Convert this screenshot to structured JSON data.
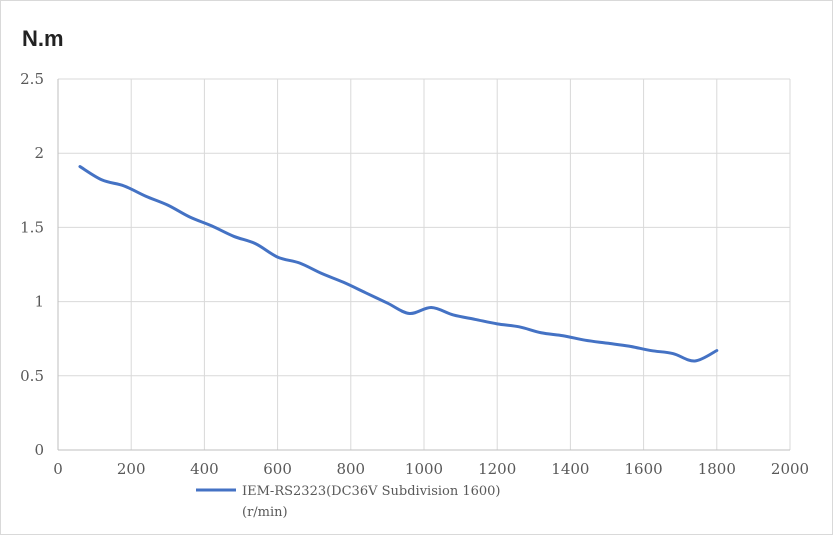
{
  "chart_data": {
    "type": "line",
    "y_unit_label": "N.m",
    "legend_line1": "IEM-RS2323(DC36V Subdivision 1600)",
    "legend_line2": "(r/min)",
    "legend_placement": "bottom",
    "xlim": [
      0,
      2000
    ],
    "ylim": [
      0,
      2.5
    ],
    "x_ticks": [
      0,
      200,
      400,
      600,
      800,
      1000,
      1200,
      1400,
      1600,
      1800,
      2000
    ],
    "y_ticks": [
      0,
      0.5,
      1,
      1.5,
      2,
      2.5
    ],
    "x_tick_labels": [
      "0",
      "200",
      "400",
      "600",
      "800",
      "1000",
      "1200",
      "1400",
      "1600",
      "1800",
      "2000"
    ],
    "y_tick_labels": [
      "0",
      "0.5",
      "1",
      "1.5",
      "2",
      "2.5"
    ],
    "grid": true,
    "series": [
      {
        "name": "IEM-RS2323(DC36V Subdivision 1600)",
        "color": "#4472c4",
        "x": [
          60,
          120,
          180,
          240,
          300,
          360,
          420,
          480,
          540,
          600,
          660,
          720,
          780,
          840,
          900,
          960,
          1020,
          1080,
          1140,
          1200,
          1260,
          1320,
          1380,
          1440,
          1500,
          1560,
          1620,
          1680,
          1740,
          1800
        ],
        "y": [
          1.91,
          1.82,
          1.78,
          1.71,
          1.65,
          1.57,
          1.51,
          1.44,
          1.39,
          1.3,
          1.26,
          1.19,
          1.13,
          1.06,
          0.99,
          0.92,
          0.96,
          0.91,
          0.88,
          0.85,
          0.83,
          0.79,
          0.77,
          0.74,
          0.72,
          0.7,
          0.67,
          0.65,
          0.6,
          0.67
        ]
      }
    ]
  }
}
